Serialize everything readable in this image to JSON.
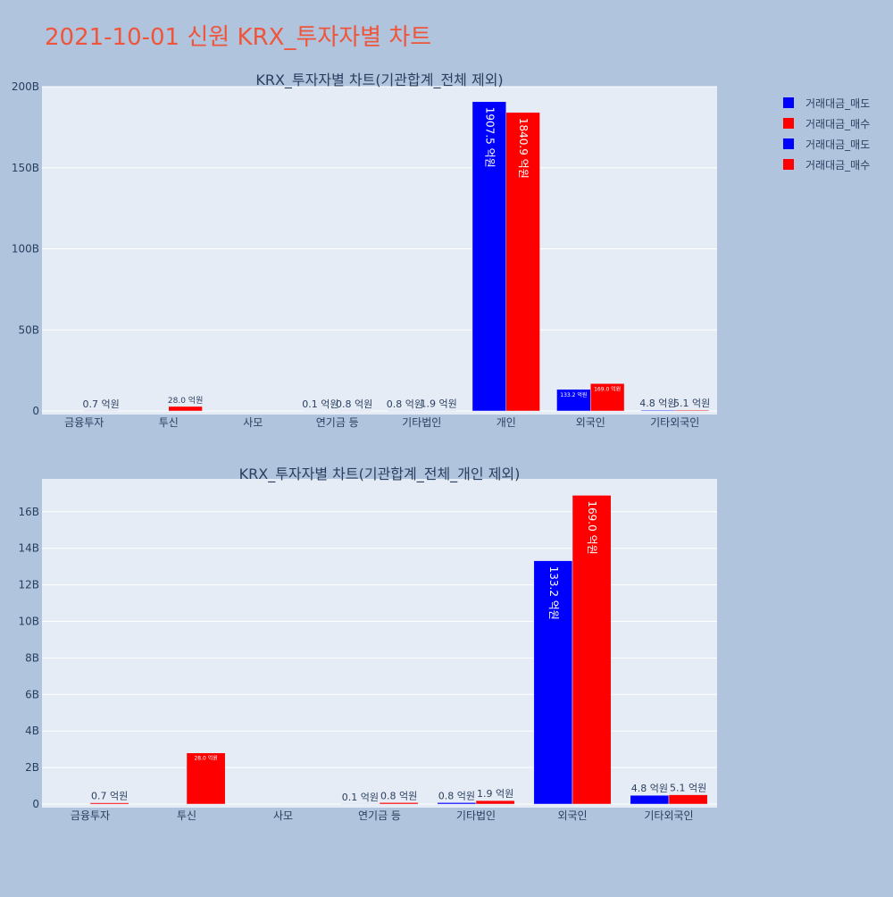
{
  "page_title": "2021-10-01 신원 KRX_투자자별 차트",
  "colors": {
    "background": "#b0c4de",
    "plot_bg": "#e5ecf6",
    "grid": "#ffffff",
    "title": "#ef553b",
    "text": "#2a3f5f",
    "sell": "#0000ff",
    "buy": "#ff0000"
  },
  "legend": {
    "placement": "top-right",
    "entries": [
      {
        "label": "거래대금_매도",
        "color": "#0000ff"
      },
      {
        "label": "거래대금_매수",
        "color": "#ff0000"
      },
      {
        "label": "거래대금_매도",
        "color": "#0000ff"
      },
      {
        "label": "거래대금_매수",
        "color": "#ff0000"
      }
    ]
  },
  "chart_data": [
    {
      "type": "bar",
      "title": "KRX_투자자별 차트(기관합계_전체 제외)",
      "categories": [
        "금융투자",
        "투신",
        "사모",
        "연기금 등",
        "기타법인",
        "개인",
        "외국인",
        "기타외국인"
      ],
      "series": [
        {
          "name": "거래대금_매도",
          "values": [
            0.0,
            0.0,
            0.0,
            0.01,
            0.08,
            190.75,
            13.32,
            0.48
          ],
          "labels": [
            "",
            "",
            "",
            "0.1 억원",
            "0.8 억원",
            "1907.5 억원",
            "133.2 억원",
            "4.8 억원"
          ]
        },
        {
          "name": "거래대금_매수",
          "values": [
            0.07,
            2.8,
            0.0,
            0.08,
            0.19,
            184.09,
            16.9,
            0.51
          ],
          "labels": [
            "0.7 억원",
            "28.0 억원",
            "",
            "0.8 억원",
            "1.9 억원",
            "1840.9 억원",
            "169.0 억원",
            "5.1 억원"
          ]
        }
      ],
      "ylim": [
        0,
        200
      ],
      "yticks": [
        0,
        50,
        100,
        150,
        200
      ],
      "ytick_labels": [
        "0",
        "50B",
        "100B",
        "150B",
        "200B"
      ],
      "grid": true
    },
    {
      "type": "bar",
      "title": "KRX_투자자별 차트(기관합계_전체_개인 제외)",
      "categories": [
        "금융투자",
        "투신",
        "사모",
        "연기금 등",
        "기타법인",
        "외국인",
        "기타외국인"
      ],
      "series": [
        {
          "name": "거래대금_매도",
          "values": [
            0.0,
            0.0,
            0.0,
            0.01,
            0.08,
            13.32,
            0.48
          ],
          "labels": [
            "",
            "",
            "",
            "0.1 억원",
            "0.8 억원",
            "133.2 억원",
            "4.8 억원"
          ]
        },
        {
          "name": "거래대금_매수",
          "values": [
            0.07,
            2.8,
            0.0,
            0.08,
            0.19,
            16.9,
            0.51
          ],
          "labels": [
            "0.7 억원",
            "28.0 억원",
            "",
            "0.8 억원",
            "1.9 억원",
            "169.0 억원",
            "5.1 억원"
          ]
        }
      ],
      "ylim": [
        0,
        17.8
      ],
      "yticks": [
        0,
        2,
        4,
        6,
        8,
        10,
        12,
        14,
        16
      ],
      "ytick_labels": [
        "0",
        "2B",
        "4B",
        "6B",
        "8B",
        "10B",
        "12B",
        "14B",
        "16B"
      ],
      "grid": true
    }
  ]
}
